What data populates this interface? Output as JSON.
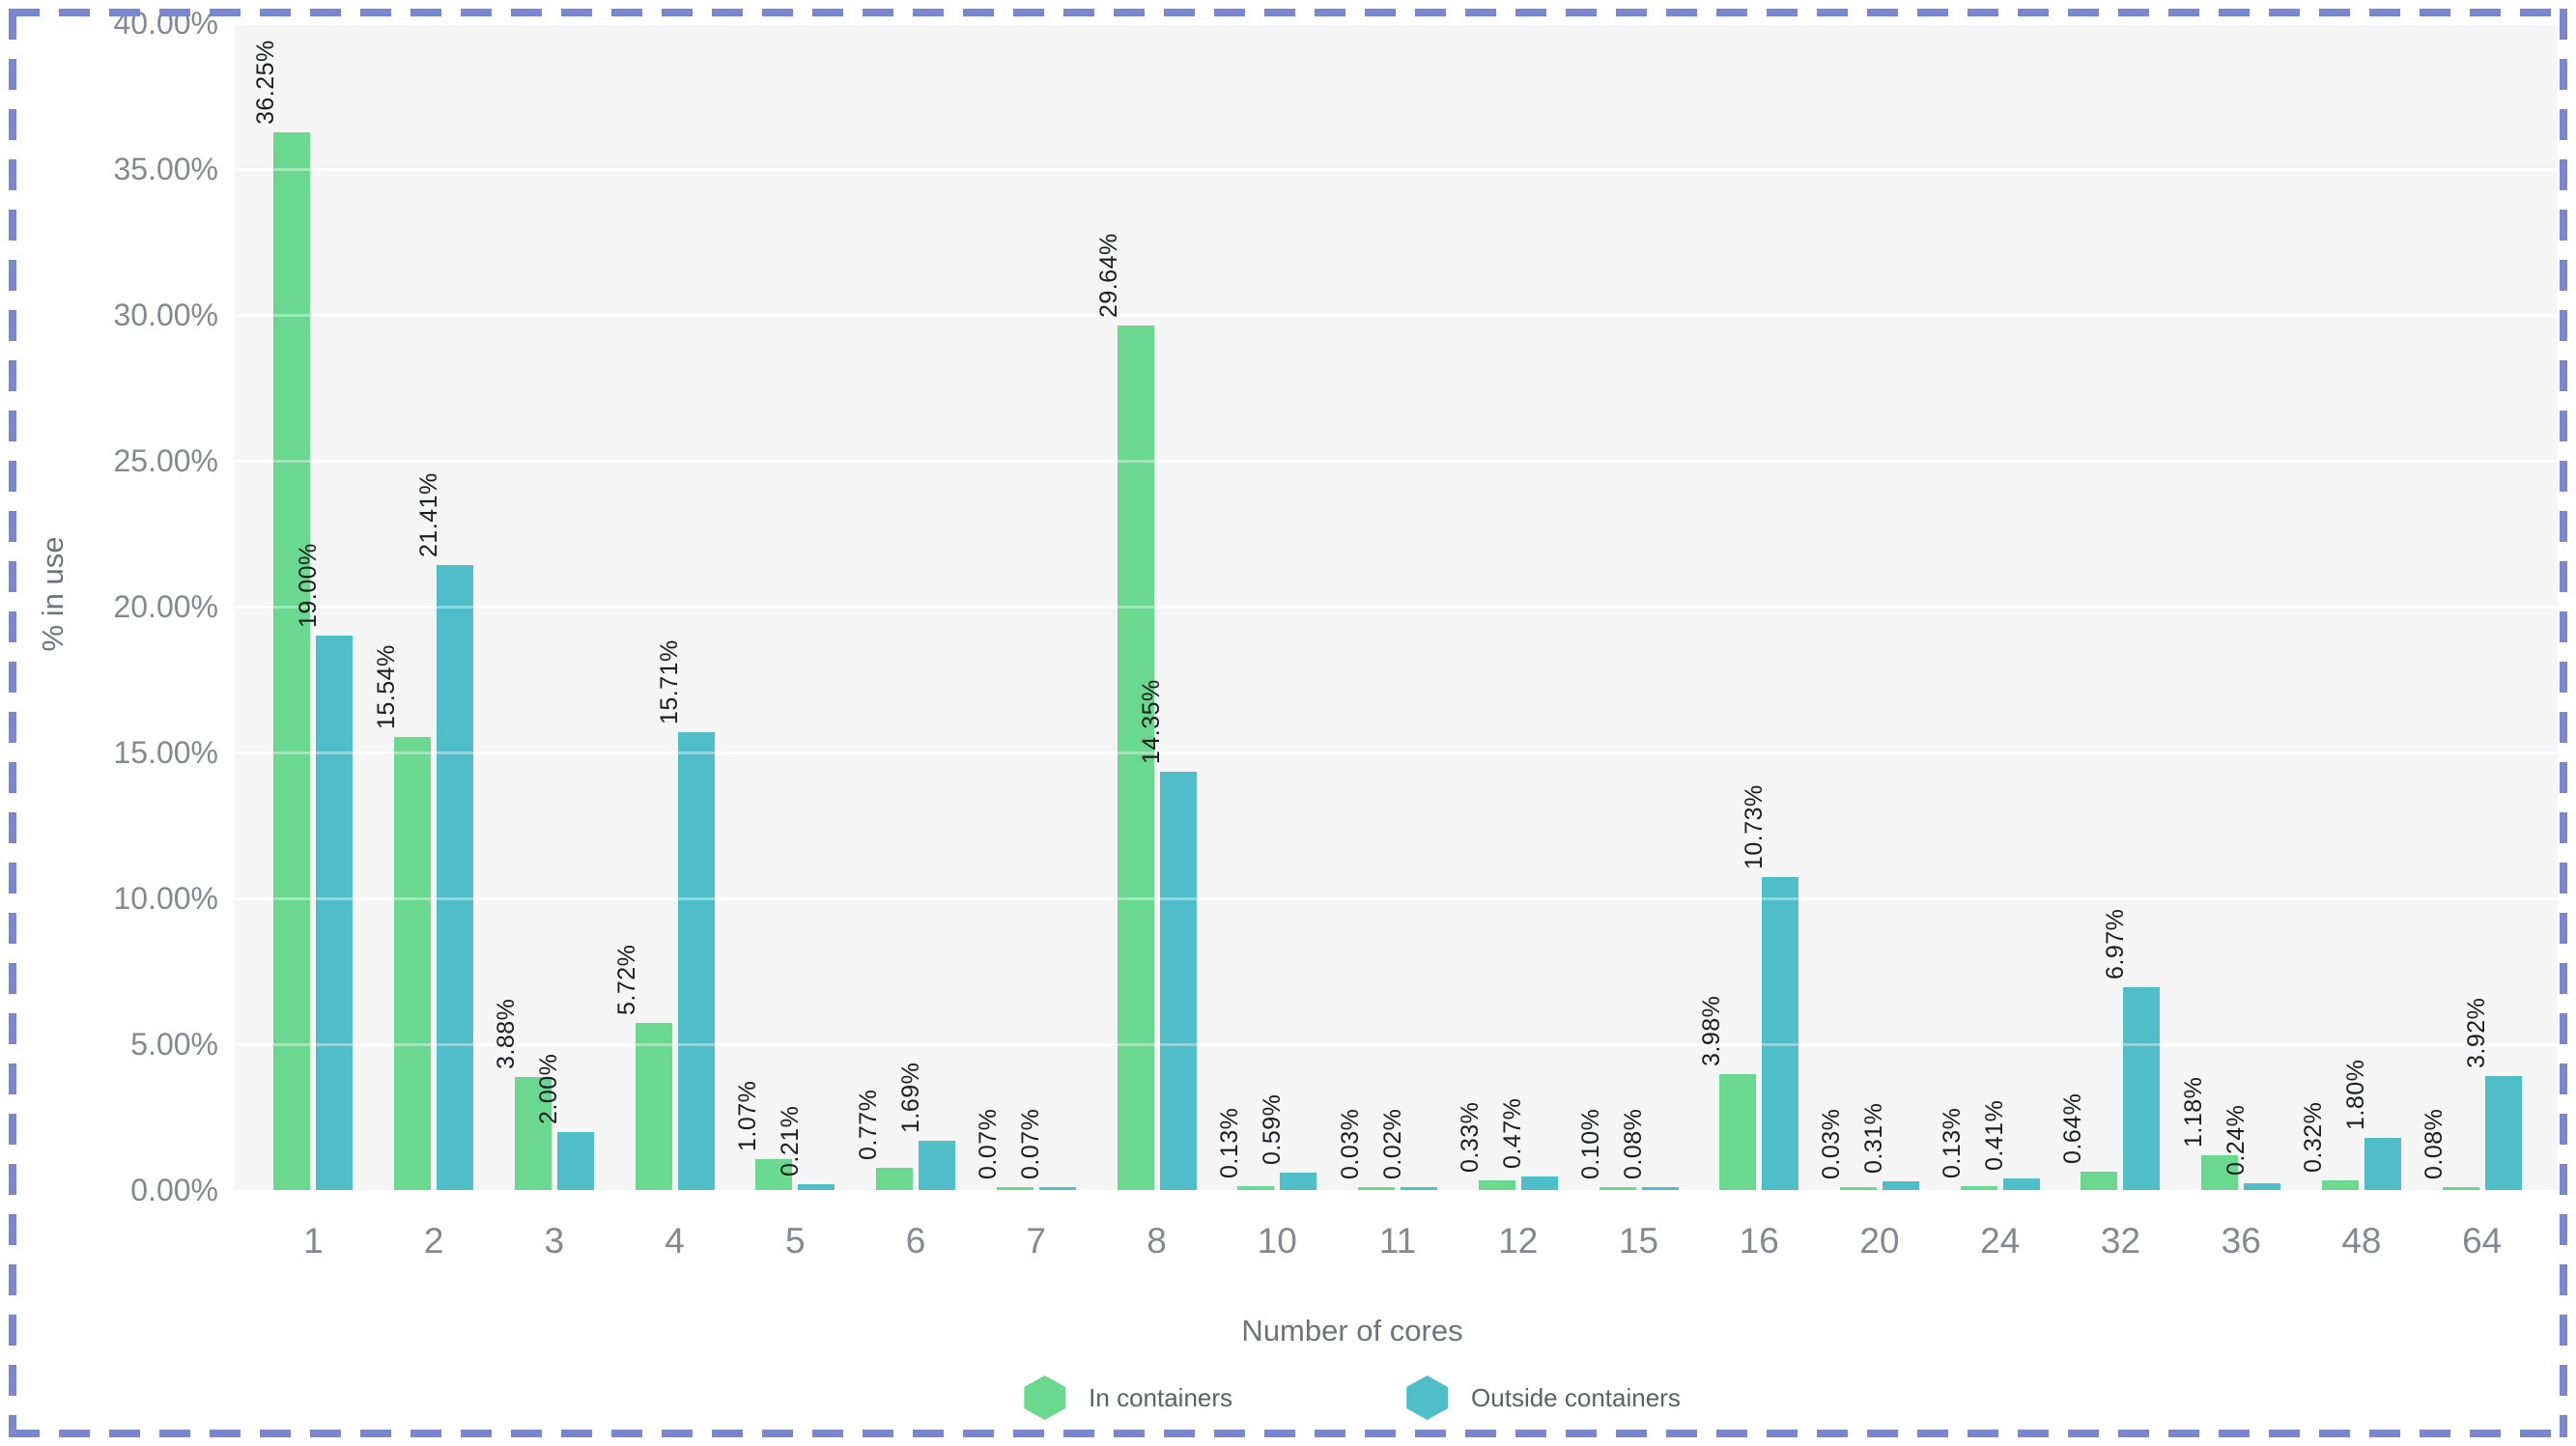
{
  "chart_data": {
    "type": "bar",
    "title": "",
    "xlabel": "Number of cores",
    "ylabel": "% in use",
    "categories": [
      "1",
      "2",
      "3",
      "4",
      "5",
      "6",
      "7",
      "8",
      "10",
      "11",
      "12",
      "15",
      "16",
      "20",
      "24",
      "32",
      "36",
      "48",
      "64"
    ],
    "series": [
      {
        "name": "In containers",
        "color": "#6bd88f",
        "values": [
          36.25,
          15.54,
          3.88,
          5.72,
          1.07,
          0.77,
          0.07,
          29.64,
          0.13,
          0.03,
          0.33,
          0.1,
          3.98,
          0.03,
          0.13,
          0.64,
          1.18,
          0.32,
          0.08
        ],
        "labels": [
          "36.25%",
          "15.54%",
          "3.88%",
          "5.72%",
          "1.07%",
          "0.77%",
          "0.07%",
          "29.64%",
          "0.13%",
          "0.03%",
          "0.33%",
          "0.10%",
          "3.98%",
          "0.03%",
          "0.13%",
          "0.64%",
          "1.18%",
          "0.32%",
          "0.08%"
        ]
      },
      {
        "name": "Outside containers",
        "color": "#50bec9",
        "values": [
          19.0,
          21.41,
          2.0,
          15.71,
          0.21,
          1.69,
          0.07,
          14.35,
          0.59,
          0.02,
          0.47,
          0.08,
          10.73,
          0.31,
          0.41,
          6.97,
          0.24,
          1.8,
          3.92
        ],
        "labels": [
          "19.00%",
          "21.41%",
          "2.00%",
          "15.71%",
          "0.21%",
          "1.69%",
          "0.07%",
          "14.35%",
          "0.59%",
          "0.02%",
          "0.47%",
          "0.08%",
          "10.73%",
          "0.31%",
          "0.41%",
          "6.97%",
          "0.24%",
          "1.80%",
          "3.92%"
        ]
      }
    ],
    "ylim": [
      0,
      40
    ],
    "y_ticks": [
      "0.00%",
      "5.00%",
      "10.00%",
      "15.00%",
      "20.00%",
      "25.00%",
      "30.00%",
      "35.00%",
      "40.00%"
    ],
    "grid": true,
    "legend_position": "bottom",
    "plot_background": "#f5f5f6",
    "gridline_color": "#ffffff",
    "tick_color": "#85898f",
    "axis_title_color": "#6e737a",
    "value_label_color": "#1b1d20",
    "legend_text_color": "#5c6167",
    "selection_border_color": "#7a87cf"
  }
}
